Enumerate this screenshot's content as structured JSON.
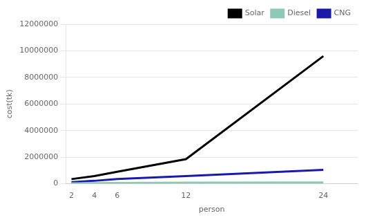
{
  "chart_data": {
    "type": "line",
    "x": [
      2,
      4,
      6,
      12,
      24
    ],
    "series": [
      {
        "name": "Solar",
        "color": "#000000",
        "values": [
          350000,
          580000,
          900000,
          1850000,
          9600000
        ]
      },
      {
        "name": "Diesel",
        "color": "#90c8b8",
        "values": [
          30000,
          45000,
          60000,
          80000,
          100000
        ]
      },
      {
        "name": "CNG",
        "color": "#1a1aaa",
        "values": [
          120000,
          220000,
          360000,
          580000,
          1050000
        ]
      }
    ],
    "xlabel": "person",
    "ylabel": "cost(tk)",
    "xlim": [
      1.5,
      27
    ],
    "xticks": [
      2,
      4,
      6,
      12,
      24
    ],
    "ylim": [
      0,
      12000000
    ],
    "yticks": [
      0,
      2000000,
      4000000,
      6000000,
      8000000,
      10000000,
      12000000
    ],
    "grid": "y",
    "legend": "upper right"
  }
}
